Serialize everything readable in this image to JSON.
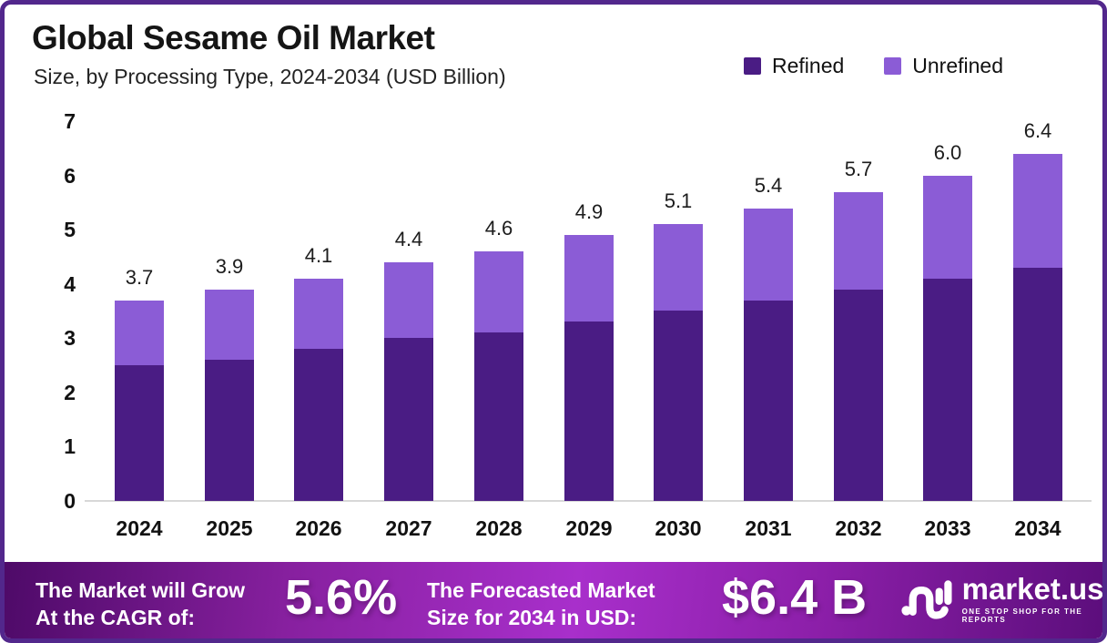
{
  "header": {
    "title": "Global Sesame Oil Market",
    "subtitle": "Size, by Processing Type, 2024-2034 (USD Billion)"
  },
  "legend": [
    {
      "label": "Refined",
      "color": "#4A1C84"
    },
    {
      "label": "Unrefined",
      "color": "#8B5CD6"
    }
  ],
  "chart_data": {
    "type": "bar",
    "stacked": true,
    "title": "Global Sesame Oil Market Size, by Processing Type, 2024-2034 (USD Billion)",
    "categories": [
      "2024",
      "2025",
      "2026",
      "2027",
      "2028",
      "2029",
      "2030",
      "2031",
      "2032",
      "2033",
      "2034"
    ],
    "series": [
      {
        "name": "Refined",
        "color": "#4A1C84",
        "values": [
          2.5,
          2.6,
          2.8,
          3.0,
          3.1,
          3.3,
          3.5,
          3.7,
          3.9,
          4.1,
          4.3
        ]
      },
      {
        "name": "Unrefined",
        "color": "#8B5CD6",
        "values": [
          1.2,
          1.3,
          1.3,
          1.4,
          1.5,
          1.6,
          1.6,
          1.7,
          1.8,
          1.9,
          2.1
        ]
      }
    ],
    "totals": [
      3.7,
      3.9,
      4.1,
      4.4,
      4.6,
      4.9,
      5.1,
      5.4,
      5.7,
      6.0,
      6.4
    ],
    "total_labels": [
      "3.7",
      "3.9",
      "4.1",
      "4.4",
      "4.6",
      "4.9",
      "5.1",
      "5.4",
      "5.7",
      "6.0",
      "6.4"
    ],
    "xlabel": "",
    "ylabel": "",
    "ylim": [
      0,
      7
    ],
    "yticks": [
      0,
      1,
      2,
      3,
      4,
      5,
      6,
      7
    ],
    "grid": false,
    "legend_position": "top-right"
  },
  "footer": {
    "grow_line1": "The Market will Grow",
    "grow_line2": "At the CAGR of:",
    "cagr_value": "5.6%",
    "forecast_line1": "The Forecasted Market",
    "forecast_line2": "Size for 2034 in USD:",
    "forecast_value": "$6.4 B",
    "brand": {
      "name": "market.us",
      "tagline": "ONE STOP SHOP FOR THE REPORTS"
    }
  },
  "colors": {
    "border": "#52278C",
    "refined_bar": "#4A1C84",
    "unrefined_bar": "#8B5CD6",
    "baseline": "#D8D8D8",
    "footer_gradient_left": "#4E0A68",
    "footer_gradient_mid": "#A82FCB",
    "footer_gradient_right": "#5C0E7C",
    "text_dark": "#151515",
    "text_white": "#FFFFFF"
  }
}
